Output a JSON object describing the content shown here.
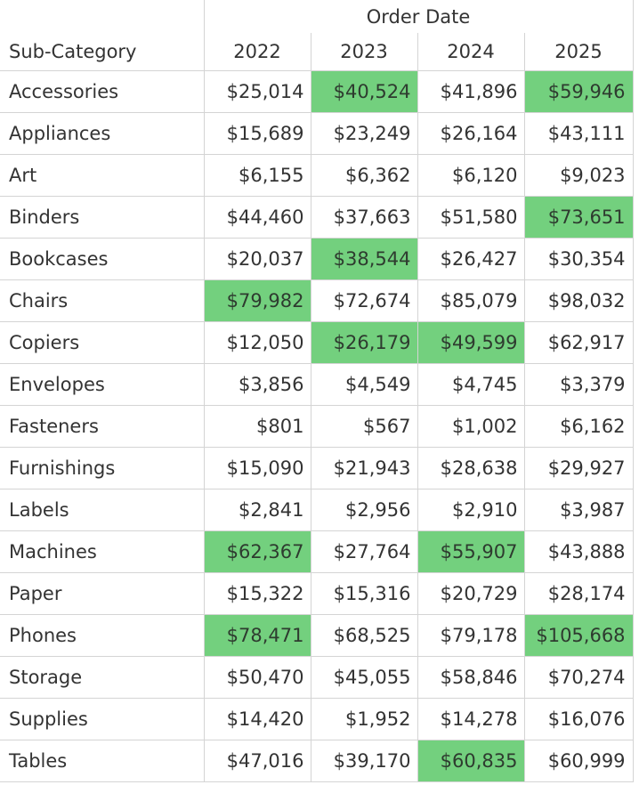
{
  "table": {
    "row_header": "Sub-Category",
    "column_group": "Order Date",
    "years": [
      "2022",
      "2023",
      "2024",
      "2025"
    ],
    "highlight_color": "#73d07e",
    "rows": [
      {
        "name": "Accessories",
        "values": [
          "$25,014",
          "$40,524",
          "$41,896",
          "$59,946"
        ],
        "highlight": [
          false,
          true,
          false,
          true
        ]
      },
      {
        "name": "Appliances",
        "values": [
          "$15,689",
          "$23,249",
          "$26,164",
          "$43,111"
        ],
        "highlight": [
          false,
          false,
          false,
          false
        ]
      },
      {
        "name": "Art",
        "values": [
          "$6,155",
          "$6,362",
          "$6,120",
          "$9,023"
        ],
        "highlight": [
          false,
          false,
          false,
          false
        ]
      },
      {
        "name": "Binders",
        "values": [
          "$44,460",
          "$37,663",
          "$51,580",
          "$73,651"
        ],
        "highlight": [
          false,
          false,
          false,
          true
        ]
      },
      {
        "name": "Bookcases",
        "values": [
          "$20,037",
          "$38,544",
          "$26,427",
          "$30,354"
        ],
        "highlight": [
          false,
          true,
          false,
          false
        ]
      },
      {
        "name": "Chairs",
        "values": [
          "$79,982",
          "$72,674",
          "$85,079",
          "$98,032"
        ],
        "highlight": [
          true,
          false,
          false,
          false
        ]
      },
      {
        "name": "Copiers",
        "values": [
          "$12,050",
          "$26,179",
          "$49,599",
          "$62,917"
        ],
        "highlight": [
          false,
          true,
          true,
          false
        ]
      },
      {
        "name": "Envelopes",
        "values": [
          "$3,856",
          "$4,549",
          "$4,745",
          "$3,379"
        ],
        "highlight": [
          false,
          false,
          false,
          false
        ]
      },
      {
        "name": "Fasteners",
        "values": [
          "$801",
          "$567",
          "$1,002",
          "$6,162"
        ],
        "highlight": [
          false,
          false,
          false,
          false
        ]
      },
      {
        "name": "Furnishings",
        "values": [
          "$15,090",
          "$21,943",
          "$28,638",
          "$29,927"
        ],
        "highlight": [
          false,
          false,
          false,
          false
        ]
      },
      {
        "name": "Labels",
        "values": [
          "$2,841",
          "$2,956",
          "$2,910",
          "$3,987"
        ],
        "highlight": [
          false,
          false,
          false,
          false
        ]
      },
      {
        "name": "Machines",
        "values": [
          "$62,367",
          "$27,764",
          "$55,907",
          "$43,888"
        ],
        "highlight": [
          true,
          false,
          true,
          false
        ]
      },
      {
        "name": "Paper",
        "values": [
          "$15,322",
          "$15,316",
          "$20,729",
          "$28,174"
        ],
        "highlight": [
          false,
          false,
          false,
          false
        ]
      },
      {
        "name": "Phones",
        "values": [
          "$78,471",
          "$68,525",
          "$79,178",
          "$105,668"
        ],
        "highlight": [
          true,
          false,
          false,
          true
        ]
      },
      {
        "name": "Storage",
        "values": [
          "$50,470",
          "$45,055",
          "$58,846",
          "$70,274"
        ],
        "highlight": [
          false,
          false,
          false,
          false
        ]
      },
      {
        "name": "Supplies",
        "values": [
          "$14,420",
          "$1,952",
          "$14,278",
          "$16,076"
        ],
        "highlight": [
          false,
          false,
          false,
          false
        ]
      },
      {
        "name": "Tables",
        "values": [
          "$47,016",
          "$39,170",
          "$60,835",
          "$60,999"
        ],
        "highlight": [
          false,
          false,
          true,
          false
        ]
      }
    ]
  }
}
